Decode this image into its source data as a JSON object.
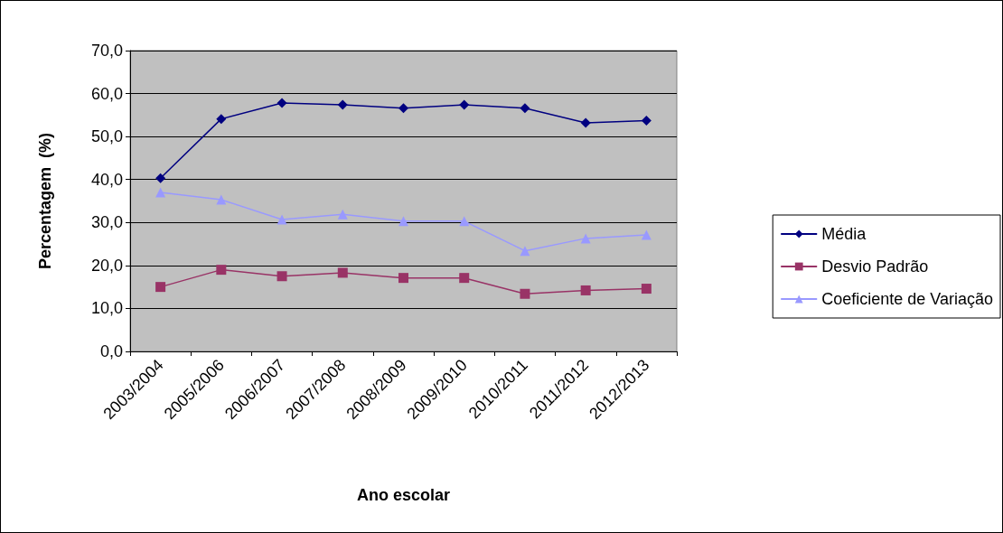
{
  "chart_data": {
    "type": "line",
    "xlabel": "Ano escolar",
    "ylabel": "Percentagem  (%)",
    "categories": [
      "2003/2004",
      "2005/2006",
      "2006/2007",
      "2007/2008",
      "2008/2009",
      "2009/2010",
      "2010/2011",
      "2011/2012",
      "2012/2013"
    ],
    "series": [
      {
        "name": "Média",
        "color": "#000080",
        "marker": "diamond",
        "values": [
          40.3,
          54.1,
          57.8,
          57.4,
          56.6,
          57.4,
          56.6,
          53.2,
          53.7
        ]
      },
      {
        "name": "Desvio Padrão",
        "color": "#993366",
        "marker": "square",
        "values": [
          15.0,
          19.0,
          17.5,
          18.3,
          17.1,
          17.1,
          13.4,
          14.2,
          14.6
        ]
      },
      {
        "name": "Coeficiente de Variação",
        "color": "#9999ff",
        "marker": "triangle",
        "values": [
          37.0,
          35.3,
          30.7,
          31.9,
          30.3,
          30.3,
          23.4,
          26.3,
          27.1
        ]
      }
    ],
    "ylim": [
      0,
      70
    ],
    "yticks": [
      {
        "value": 0,
        "label": "0,0"
      },
      {
        "value": 10,
        "label": "10,0"
      },
      {
        "value": 20,
        "label": "20,0"
      },
      {
        "value": 30,
        "label": "30,0"
      },
      {
        "value": 40,
        "label": "40,0"
      },
      {
        "value": 50,
        "label": "50,0"
      },
      {
        "value": 60,
        "label": "60,0"
      },
      {
        "value": 70,
        "label": "70,0"
      }
    ],
    "grid": "y",
    "legend": "right",
    "line_style": "solid"
  }
}
